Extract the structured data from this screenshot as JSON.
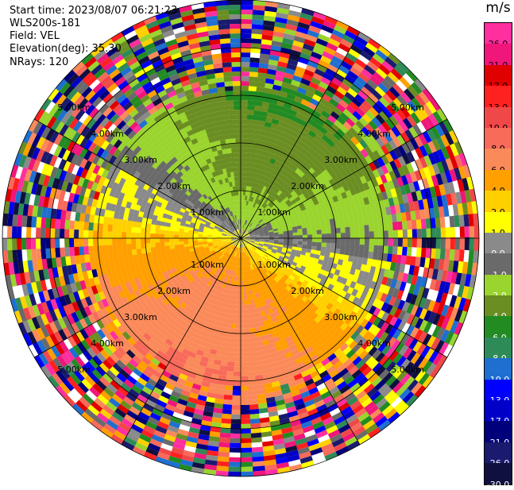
{
  "info": {
    "start_time": "Start time: 2023/08/07 06:21:23",
    "station": "WLS200s-181",
    "field": "Field: VEL",
    "elevation": "Elevation(deg): 35.30",
    "nrays": "NRays: 120"
  },
  "range_labels": [
    "1.00km",
    "2.00km",
    "3.00km",
    "4.00km",
    "5.00km"
  ],
  "colorbar": {
    "unit": "m/s",
    "ticks": [
      "26.0",
      "21.0",
      "17.0",
      "13.0",
      "10.0",
      "8.0",
      "6.0",
      "4.0",
      "2.0",
      "1.0",
      "0.0",
      "-1.0",
      "-2.0",
      "-4.0",
      "-6.0",
      "-8.0",
      "-10.0",
      "-13.0",
      "-17.0",
      "-21.0",
      "-26.0",
      "-30.0"
    ],
    "colors": [
      "#ff2fa0",
      "#f0167a",
      "#e00000",
      "#ff2020",
      "#f04848",
      "#f86a5a",
      "#fb8a5a",
      "#ff9f00",
      "#ffd000",
      "#ffff00",
      "#8a8a8a",
      "#6a6a6a",
      "#9ad42e",
      "#6b8e23",
      "#228b22",
      "#2e8b57",
      "#1e6fd0",
      "#0000ff",
      "#0000c8",
      "#00007a",
      "#1a1a6e",
      "#101040"
    ]
  }
}
